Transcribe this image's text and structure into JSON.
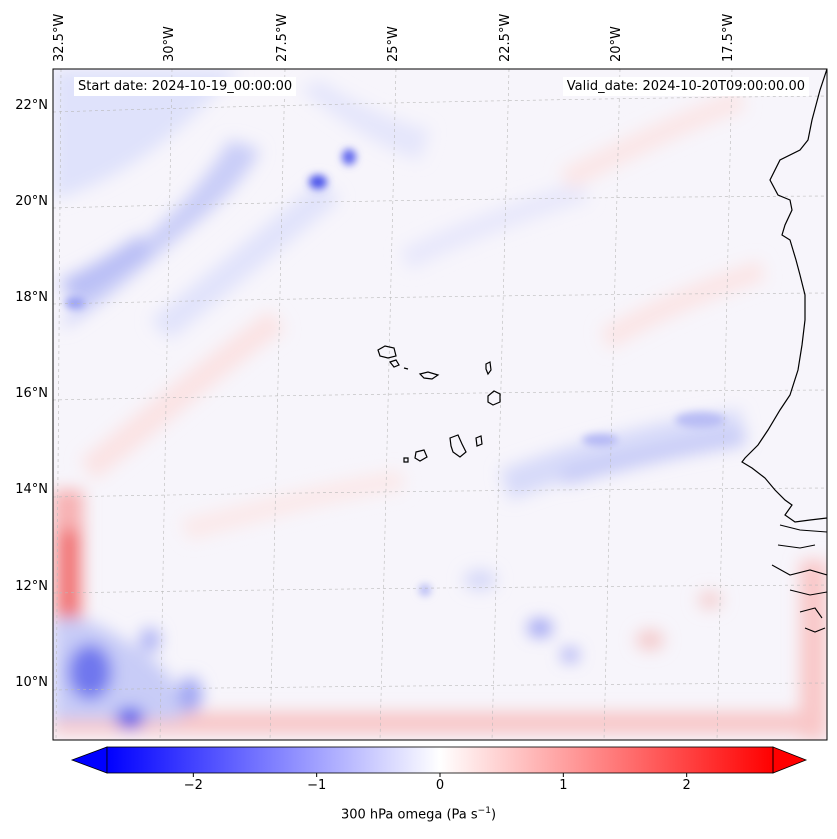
{
  "map": {
    "start_date": "Start date: 2024-10-19_00:00:00",
    "valid_date": "Valid_date: 2024-10-20T09:00:00.00",
    "lon_labels": [
      "32.5°W",
      "30°W",
      "27.5°W",
      "25°W",
      "22.5°W",
      "20°W",
      "17.5°W"
    ],
    "lat_labels": [
      "22°N",
      "20°N",
      "18°N",
      "16°N",
      "14°N",
      "12°N",
      "10°N"
    ],
    "field": "300 hPa omega",
    "region": "Cabo Verde / West Africa coast"
  },
  "colorbar": {
    "ticks": [
      "−2",
      "−1",
      "0",
      "1",
      "2"
    ],
    "tick_values": [
      -2,
      -1,
      0,
      1,
      2
    ],
    "range": [
      -2.7,
      2.7
    ],
    "label_main": "300 hPa omega (Pa s",
    "label_sup": "−1",
    "label_end": ")",
    "neg_color": "#0000ff",
    "zero_color": "#ffffff",
    "pos_color": "#ff0000"
  }
}
